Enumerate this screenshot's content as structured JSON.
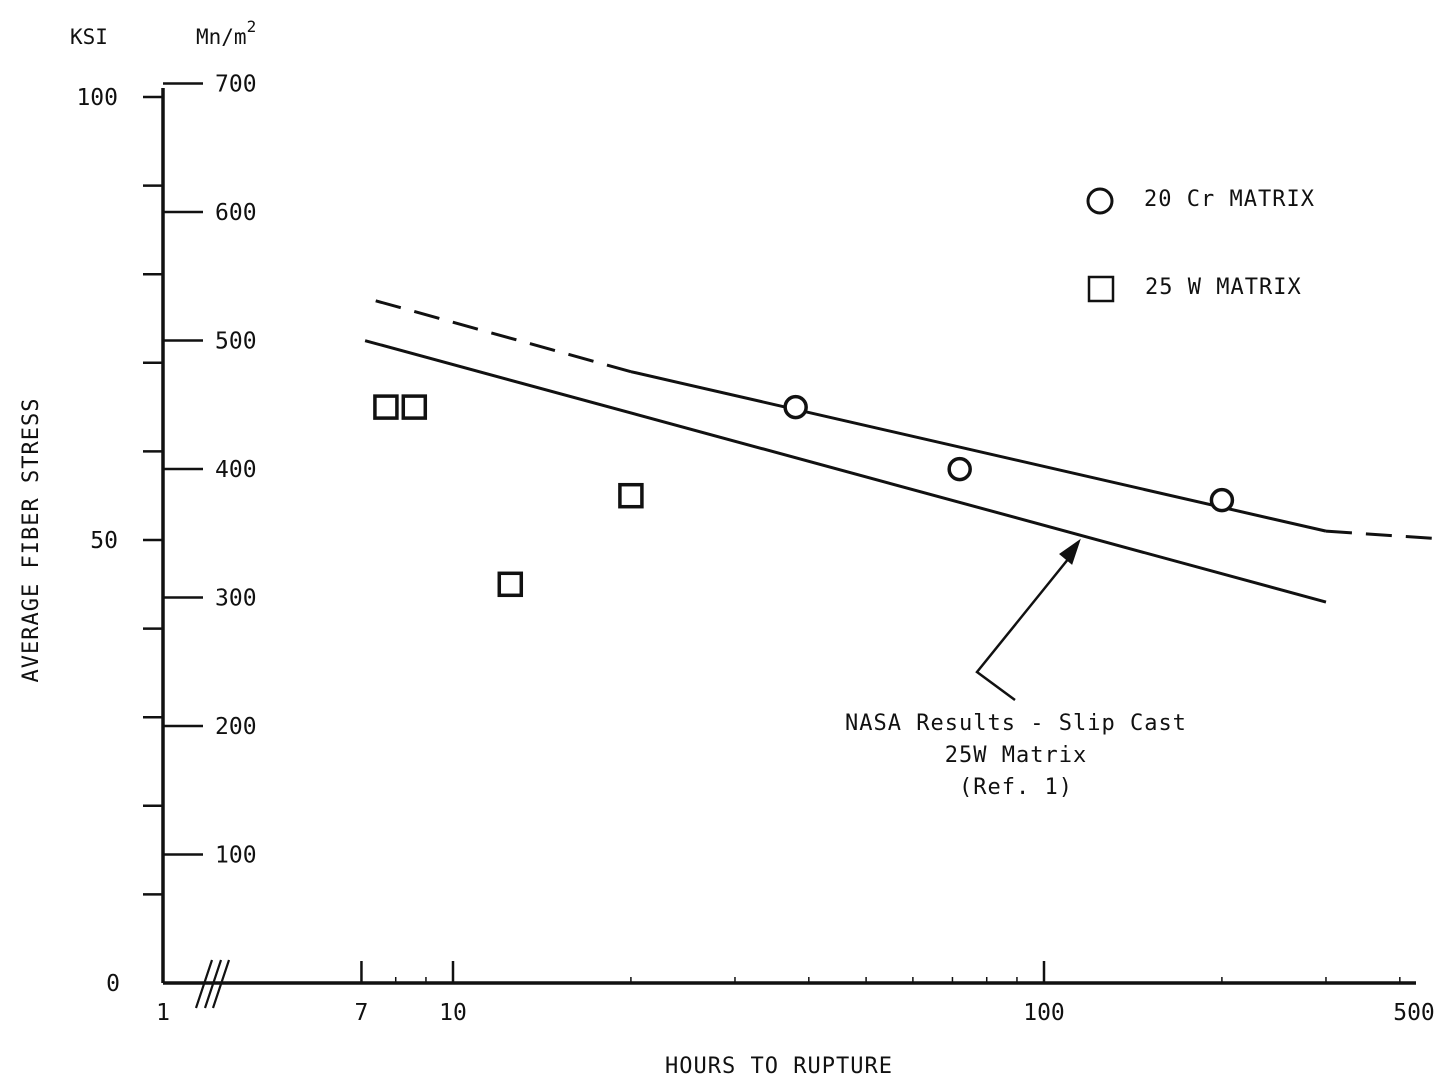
{
  "chart_data": {
    "type": "scatter",
    "xlabel": "HOURS TO RUPTURE",
    "ylabel": "AVERAGE FIBER STRESS",
    "x_scale": "log",
    "x_break": true,
    "x_tick_labels": [
      {
        "label": "1",
        "value": 1
      },
      {
        "label": "7",
        "value": 7
      },
      {
        "label": "10",
        "value": 10
      },
      {
        "label": "100",
        "value": 100
      },
      {
        "label": "500",
        "value": 500
      }
    ],
    "x_log_ticks_from": 7,
    "xlim": [
      7,
      500
    ],
    "y_left": {
      "unit": "KSI",
      "ylim": [
        0,
        100
      ],
      "tick_labels": [
        {
          "label": "100",
          "value": 100
        },
        {
          "label": "50",
          "value": 50
        },
        {
          "label": "0",
          "value": 0
        }
      ],
      "minor_ticks": [
        10,
        20,
        30,
        40,
        60,
        70,
        80,
        90
      ]
    },
    "y_right": {
      "unit_base": "Mn/m",
      "unit_exponent": "2",
      "tick_labels": [
        {
          "label": "700",
          "value": 700
        },
        {
          "label": "600",
          "value": 600
        },
        {
          "label": "500",
          "value": 500
        },
        {
          "label": "400",
          "value": 400
        },
        {
          "label": "300",
          "value": 300
        },
        {
          "label": "200",
          "value": 200
        },
        {
          "label": "100",
          "value": 100
        }
      ]
    },
    "series": [
      {
        "name": "20 Cr MATRIX",
        "marker": "circle",
        "points": [
          {
            "x": 38,
            "y": 65
          },
          {
            "x": 72,
            "y": 58
          },
          {
            "x": 200,
            "y": 54.5
          }
        ]
      },
      {
        "name": "25 W MATRIX",
        "marker": "square",
        "points": [
          {
            "x": 7.7,
            "y": 65
          },
          {
            "x": 8.6,
            "y": 65
          },
          {
            "x": 12.5,
            "y": 45
          },
          {
            "x": 20,
            "y": 55
          }
        ]
      }
    ],
    "lines": [
      {
        "id": "20cr-fit-dashed",
        "style": "dashed",
        "from": {
          "x": 7.4,
          "y": 77
        },
        "to": {
          "x": 20,
          "y": 69
        }
      },
      {
        "id": "20cr-fit-solid",
        "style": "solid",
        "from": {
          "x": 20,
          "y": 69
        },
        "to": {
          "x": 300,
          "y": 51
        }
      },
      {
        "id": "20cr-fit-dashed-ext",
        "style": "dashed",
        "from": {
          "x": 300,
          "y": 51
        },
        "to": {
          "x": 500,
          "y": 50
        }
      },
      {
        "id": "nasa-line",
        "style": "solid",
        "from": {
          "x": 7.1,
          "y": 72.5
        },
        "to": {
          "x": 300,
          "y": 43
        }
      }
    ],
    "annotation": {
      "lines": [
        "NASA Results - Slip Cast",
        "25W Matrix",
        "(Ref. 1)"
      ],
      "points_to": {
        "x": 115,
        "y": 50
      }
    }
  }
}
